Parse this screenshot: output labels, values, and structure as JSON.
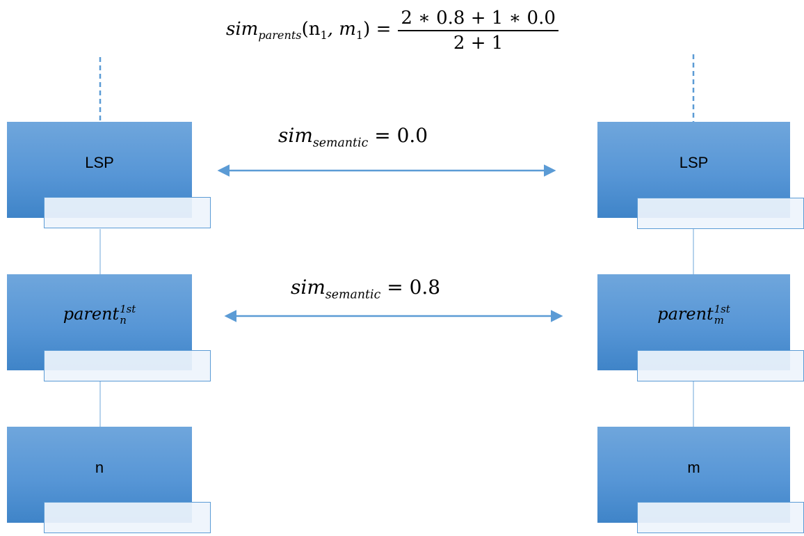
{
  "formula": {
    "lhs_base": "sim",
    "lhs_sub": "parents",
    "lhs_args": "(n",
    "arg1_sub": "1",
    "arg_sep": ", m",
    "arg2_sub": "1",
    "lhs_close": ") =",
    "numerator": "2 ∗ 0.8 + 1 ∗ 0.0",
    "denominator": "2 + 1"
  },
  "sim_top": {
    "base": "sim",
    "sub": "semantic",
    "value": "= 0.0"
  },
  "sim_mid": {
    "base": "sim",
    "sub": "semantic",
    "value": "= 0.8"
  },
  "left": {
    "top_label": "LSP",
    "mid_base": "parent",
    "mid_sup": "1st",
    "mid_sub": "n",
    "bottom_label": "n"
  },
  "right": {
    "top_label": "LSP",
    "mid_base": "parent",
    "mid_sup": "1st",
    "mid_sub": "m",
    "bottom_label": "m"
  },
  "colors": {
    "box_fill": "#5796d6",
    "tab_border": "#5b9bd5",
    "arrow": "#5b9bd5"
  }
}
